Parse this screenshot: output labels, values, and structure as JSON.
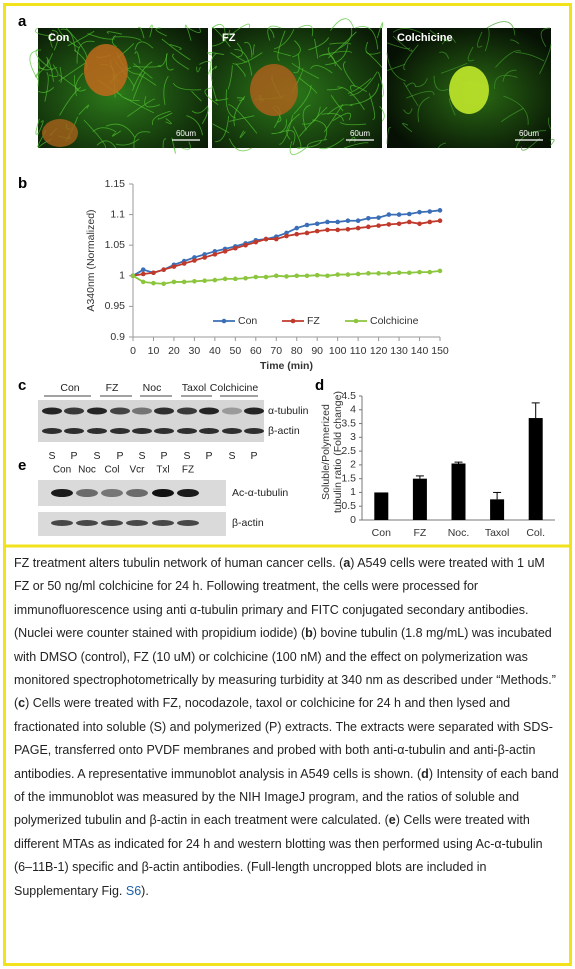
{
  "panel_labels": [
    "a",
    "b",
    "c",
    "d",
    "e"
  ],
  "panel_a": {
    "images": [
      {
        "label": "Con",
        "scale": "60um"
      },
      {
        "label": "FZ",
        "scale": "60um"
      },
      {
        "label": "Colchicine",
        "scale": "60um"
      }
    ]
  },
  "chart_data": [
    {
      "type": "line",
      "y_label": "A340nm (Normalized)",
      "x_label": "Time (min)",
      "x": [
        0,
        5,
        10,
        15,
        20,
        25,
        30,
        35,
        40,
        45,
        50,
        55,
        60,
        65,
        70,
        75,
        80,
        85,
        90,
        95,
        100,
        105,
        110,
        115,
        120,
        125,
        130,
        135,
        140,
        145,
        150
      ],
      "series": [
        {
          "name": "Con",
          "color": "#3a6fb7",
          "values": [
            1.0,
            1.01,
            1.005,
            1.01,
            1.018,
            1.024,
            1.03,
            1.035,
            1.04,
            1.044,
            1.048,
            1.053,
            1.058,
            1.06,
            1.064,
            1.07,
            1.078,
            1.083,
            1.085,
            1.088,
            1.088,
            1.09,
            1.09,
            1.094,
            1.095,
            1.1,
            1.1,
            1.101,
            1.104,
            1.105,
            1.107
          ]
        },
        {
          "name": "FZ",
          "color": "#c0392b",
          "values": [
            1.0,
            1.003,
            1.005,
            1.01,
            1.015,
            1.02,
            1.025,
            1.03,
            1.035,
            1.04,
            1.045,
            1.05,
            1.055,
            1.06,
            1.06,
            1.065,
            1.068,
            1.07,
            1.073,
            1.075,
            1.075,
            1.076,
            1.078,
            1.08,
            1.082,
            1.084,
            1.085,
            1.088,
            1.085,
            1.088,
            1.09
          ]
        },
        {
          "name": "Colchicine",
          "color": "#8cc63f",
          "values": [
            1.0,
            0.99,
            0.988,
            0.987,
            0.99,
            0.99,
            0.991,
            0.992,
            0.993,
            0.995,
            0.995,
            0.996,
            0.998,
            0.998,
            1.0,
            0.999,
            1.0,
            1.0,
            1.001,
            1.0,
            1.002,
            1.002,
            1.003,
            1.004,
            1.004,
            1.004,
            1.005,
            1.005,
            1.006,
            1.006,
            1.008
          ]
        }
      ],
      "xlim": [
        0,
        150
      ],
      "xticks": [
        0,
        10,
        20,
        30,
        40,
        50,
        60,
        70,
        80,
        90,
        100,
        110,
        120,
        130,
        140,
        150
      ],
      "ylim": [
        0.9,
        1.15
      ],
      "yticks": [
        0.9,
        0.95,
        1,
        1.05,
        1.1,
        1.15
      ],
      "legend": "bottom"
    },
    {
      "type": "bar",
      "y_label": [
        "Soluble/Polymerized",
        "tubulin ratio (Fold change)"
      ],
      "categories": [
        "Con",
        "FZ",
        "Noc.",
        "Taxol",
        "Col."
      ],
      "values": [
        1.0,
        1.5,
        2.05,
        0.75,
        3.7
      ],
      "errors": [
        0,
        0.1,
        0.05,
        0.25,
        0.55
      ],
      "color": "#000000",
      "ylim": [
        0,
        4.5
      ],
      "yticks": [
        0,
        0.5,
        1,
        1.5,
        2,
        2.5,
        3,
        3.5,
        4,
        4.5
      ]
    }
  ],
  "panel_c": {
    "groups": [
      "Con",
      "FZ",
      "Noc",
      "Taxol",
      "Colchicine"
    ],
    "lanes": [
      "S",
      "P",
      "S",
      "P",
      "S",
      "P",
      "S",
      "P",
      "S",
      "P"
    ],
    "bands": [
      "α-tubulin",
      "β-actin"
    ]
  },
  "panel_e": {
    "lanes": [
      "Con",
      "Noc",
      "Col",
      "Vcr",
      "Txl",
      "FZ"
    ],
    "bands": [
      "Ac-α-tubulin",
      "β-actin"
    ]
  },
  "caption": [
    "FZ treatment alters tubulin network of human cancer cells. (",
    "a",
    ") A549 cells were treated with 1 uM FZ or 50 ng/ml colchicine for 24 h. Following treatment, the cells were processed for immunofluorescence using anti α-tubulin primary and FITC conjugated secondary antibodies. (Nuclei were counter stained with propidium iodide) (",
    "b",
    ") bovine tubulin (1.8 mg/mL) was incubated with DMSO (control), FZ (10 uM) or colchicine (100 nM) and the effect on polymerization was monitored spectrophotometrically by measuring turbidity at 340 nm as described under “Methods.” (",
    "c",
    ") Cells were treated with FZ, nocodazole, taxol or colchicine for 24 h and then lysed and fractionated into soluble (S) and polymerized (P) extracts. The extracts were separated with SDS-PAGE, transferred onto PVDF membranes and probed with both anti-α-tubulin and anti-β-actin antibodies. A representative immunoblot analysis in A549 cells is shown. (",
    "d",
    ") Intensity of each band of the immunoblot was measured by the NIH ImageJ program, and the ratios of soluble and polymerized tubulin and β-actin in each treatment were calculated. (",
    "e",
    ") Cells were treated with different MTAs as indicated for 24 h and western blotting was then performed using Ac-α-tubulin (6–11B-1) specific and β-actin antibodies. (Full-length uncropped blots are included in Supplementary Fig. ",
    "S6",
    ")."
  ]
}
